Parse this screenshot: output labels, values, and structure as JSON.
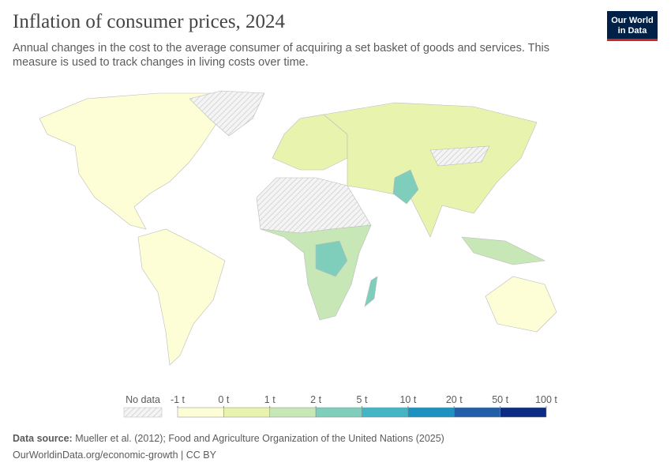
{
  "header": {
    "title": "Inflation of consumer prices, 2024",
    "subtitle": "Annual changes in the cost to the average consumer of acquiring a set basket of goods and services. This measure is used to track changes in living costs over time."
  },
  "logo": {
    "line1": "Our World",
    "line2": "in Data"
  },
  "legend": {
    "no_data_label": "No data",
    "ticks": [
      {
        "value": -1,
        "label": "-1 t"
      },
      {
        "value": 0,
        "label": "0 t"
      },
      {
        "value": 1,
        "label": "1 t"
      },
      {
        "value": 2,
        "label": "2 t"
      },
      {
        "value": 5,
        "label": "5 t"
      },
      {
        "value": 10,
        "label": "10 t"
      },
      {
        "value": 20,
        "label": "20 t"
      },
      {
        "value": 50,
        "label": "50 t"
      },
      {
        "value": 100,
        "label": "100 t"
      }
    ],
    "colors": [
      "#fefed6",
      "#e8f4ad",
      "#c7e7b6",
      "#7fcdbb",
      "#42b6c4",
      "#1e91c0",
      "#225ea8",
      "#0c2c84"
    ]
  },
  "footer": {
    "source_label": "Data source:",
    "source": "Mueller et al. (2012); Food and Agriculture Organization of the United Nations (2025)",
    "url": "OurWorldinData.org/economic-growth | CC BY"
  }
}
